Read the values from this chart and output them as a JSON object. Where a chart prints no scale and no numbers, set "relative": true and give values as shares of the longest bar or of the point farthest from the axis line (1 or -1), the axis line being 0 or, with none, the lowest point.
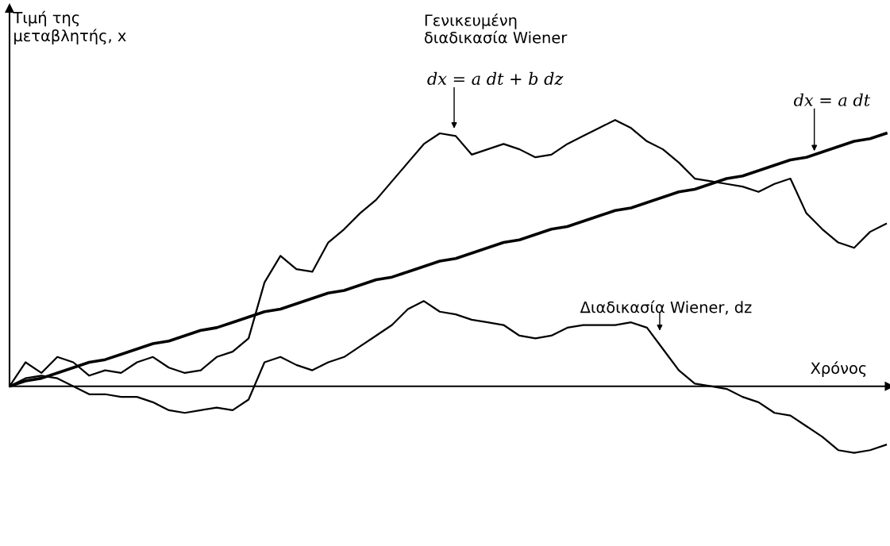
{
  "chart_data": {
    "type": "line",
    "relative": true,
    "xlabel": "Χρόνος",
    "ylabel": "Τιμή της\nμεταβλητής, x",
    "annotations": [
      "Γενικευμένη\nδιαδικασία Wiener",
      "dx = a dt + b dz",
      "dx = a dt",
      "Διαδικασία Wiener, dz"
    ],
    "categories": [
      null,
      null,
      null,
      null,
      null,
      null,
      null,
      null,
      null,
      null,
      null,
      null,
      null,
      null,
      null,
      null,
      null,
      null,
      null,
      null,
      null,
      null,
      null,
      null,
      null,
      null,
      null,
      null,
      null,
      null,
      null,
      null,
      null,
      null,
      null,
      null,
      null,
      null,
      null,
      null,
      null,
      null,
      null,
      null,
      null,
      null,
      null,
      null,
      null,
      null,
      null,
      null,
      null,
      null,
      null,
      null
    ],
    "series": [
      {
        "color": "#000000",
        "values": [
          0,
          0.09,
          0.05,
          0.11,
          0.09,
          0.04,
          0.06,
          0.05,
          0.09,
          0.11,
          0.07,
          0.05,
          0.06,
          0.11,
          0.13,
          0.18,
          0.39,
          0.49,
          0.44,
          0.43,
          0.54,
          0.59,
          0.65,
          0.7,
          0.77,
          0.84,
          0.91,
          0.95,
          0.94,
          0.87,
          0.89,
          0.91,
          0.89,
          0.86,
          0.87,
          0.91,
          0.94,
          0.97,
          1.0,
          0.97,
          0.92,
          0.89,
          0.84,
          0.78,
          0.77,
          0.76,
          0.75,
          0.73,
          0.76,
          0.78,
          0.65,
          0.59,
          0.54,
          0.52,
          0.58,
          0.61
        ]
      },
      {
        "color": "#000000",
        "values": [
          0,
          0.02,
          0.03,
          0.05,
          0.07,
          0.09,
          0.1,
          0.12,
          0.14,
          0.16,
          0.17,
          0.19,
          0.21,
          0.22,
          0.24,
          0.26,
          0.28,
          0.29,
          0.31,
          0.33,
          0.35,
          0.36,
          0.38,
          0.4,
          0.41,
          0.43,
          0.45,
          0.47,
          0.48,
          0.5,
          0.52,
          0.54,
          0.55,
          0.57,
          0.59,
          0.6,
          0.62,
          0.64,
          0.66,
          0.67,
          0.69,
          0.71,
          0.73,
          0.74,
          0.76,
          0.78,
          0.79,
          0.81,
          0.83,
          0.85,
          0.86,
          0.88,
          0.9,
          0.92,
          0.93,
          0.95
        ]
      },
      {
        "color": "#000000",
        "values": [
          0,
          0.03,
          0.04,
          0.03,
          0,
          -0.03,
          -0.03,
          -0.04,
          -0.04,
          -0.06,
          -0.09,
          -0.1,
          -0.09,
          -0.08,
          -0.09,
          -0.05,
          0.09,
          0.11,
          0.08,
          0.06,
          0.09,
          0.11,
          0.15,
          0.19,
          0.23,
          0.29,
          0.32,
          0.28,
          0.27,
          0.25,
          0.24,
          0.23,
          0.19,
          0.18,
          0.19,
          0.22,
          0.23,
          0.23,
          0.23,
          0.24,
          0.22,
          0.14,
          0.06,
          0.01,
          0,
          -0.01,
          -0.04,
          -0.06,
          -0.1,
          -0.11,
          -0.15,
          -0.19,
          -0.24,
          -0.25,
          -0.24,
          -0.22
        ]
      }
    ]
  }
}
